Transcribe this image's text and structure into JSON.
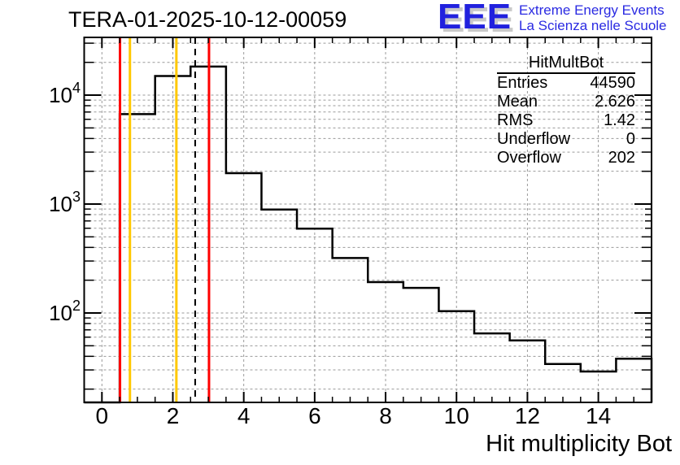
{
  "header": {
    "title": "TERA-01-2025-10-12-00059"
  },
  "logo": {
    "acronym": "EEE",
    "line1": "Extreme Energy Events",
    "line2": "La Scienza nelle Scuole",
    "text_color": "#2a2ae2"
  },
  "stats": {
    "title": "HitMultBot",
    "rows": [
      {
        "label": "Entries",
        "value": "44590"
      },
      {
        "label": "Mean",
        "value": "2.626"
      },
      {
        "label": "RMS",
        "value": "1.42"
      },
      {
        "label": "Underflow",
        "value": "0"
      },
      {
        "label": "Overflow",
        "value": "202"
      }
    ]
  },
  "chart_data": {
    "type": "bar",
    "title": "TERA-01-2025-10-12-00059",
    "xlabel": "Hit multiplicity Bot",
    "ylabel": "",
    "y_scale": "log10",
    "grid": true,
    "x_range": [
      -0.5,
      15.5
    ],
    "y_range": [
      15.1,
      33900
    ],
    "x_major_ticks": [
      0,
      2,
      4,
      6,
      8,
      10,
      12,
      14
    ],
    "x_minor_step": 0.5,
    "y_decade_labels": [
      2,
      3,
      4
    ],
    "bin_width": 1,
    "bin_centers": [
      0,
      1,
      2,
      3,
      4,
      5,
      6,
      7,
      8,
      9,
      10,
      11,
      12,
      13,
      14,
      15
    ],
    "bin_counts": [
      0,
      6700,
      15000,
      18300,
      1920,
      890,
      595,
      320,
      192,
      170,
      104,
      65,
      56,
      34,
      29,
      38
    ],
    "marker_lines": [
      {
        "name": "red-low-line",
        "x": 0.51,
        "color": "#ff0000",
        "style": "solid"
      },
      {
        "name": "yellow-low-line",
        "x": 0.79,
        "color": "#ffc800",
        "style": "solid"
      },
      {
        "name": "yellow-high-line",
        "x": 2.1,
        "color": "#ffc800",
        "style": "solid"
      },
      {
        "name": "mean-dashed-line",
        "x": 2.63,
        "color": "#000000",
        "style": "dashed"
      },
      {
        "name": "red-high-line",
        "x": 3.02,
        "color": "#ff0000",
        "style": "solid"
      }
    ],
    "colors": {
      "histogram": "#000000",
      "frame": "#000000",
      "grid": "#9a9a9a"
    }
  }
}
